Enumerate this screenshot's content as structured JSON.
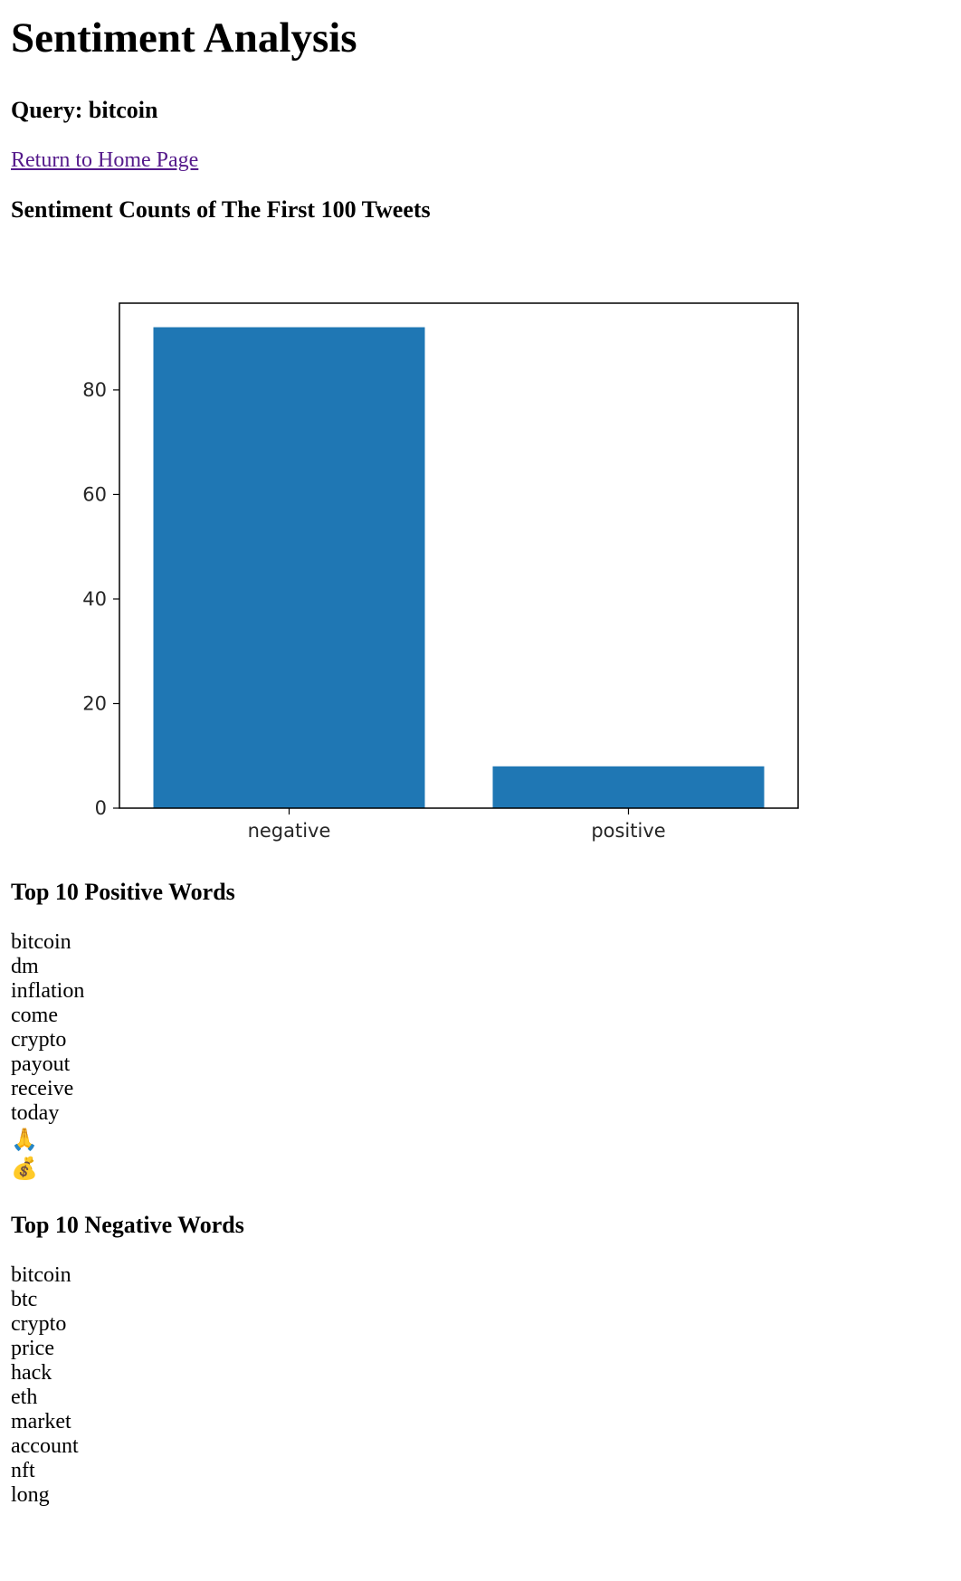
{
  "page": {
    "title": "Sentiment Analysis",
    "query_heading": "Query: bitcoin",
    "home_link": "Return to Home Page"
  },
  "counts_section": {
    "heading": "Sentiment Counts of The First 100 Tweets"
  },
  "chart_data": {
    "type": "bar",
    "categories": [
      "negative",
      "positive"
    ],
    "values": [
      92,
      8
    ],
    "ylim": [
      0,
      96.6
    ],
    "yticks": [
      0,
      20,
      40,
      60,
      80
    ],
    "xlabel": "",
    "ylabel": "",
    "title": "",
    "grid": false,
    "bar_color": "#1f77b4"
  },
  "positive_section": {
    "heading": "Top 10 Positive Words",
    "words": [
      "bitcoin",
      "dm",
      "inflation",
      "come",
      "crypto",
      "payout",
      "receive",
      "today",
      "🙏",
      "💰"
    ]
  },
  "negative_section": {
    "heading": "Top 10 Negative Words",
    "words": [
      "bitcoin",
      "btc",
      "crypto",
      "price",
      "hack",
      "eth",
      "market",
      "account",
      "nft",
      "long"
    ]
  }
}
